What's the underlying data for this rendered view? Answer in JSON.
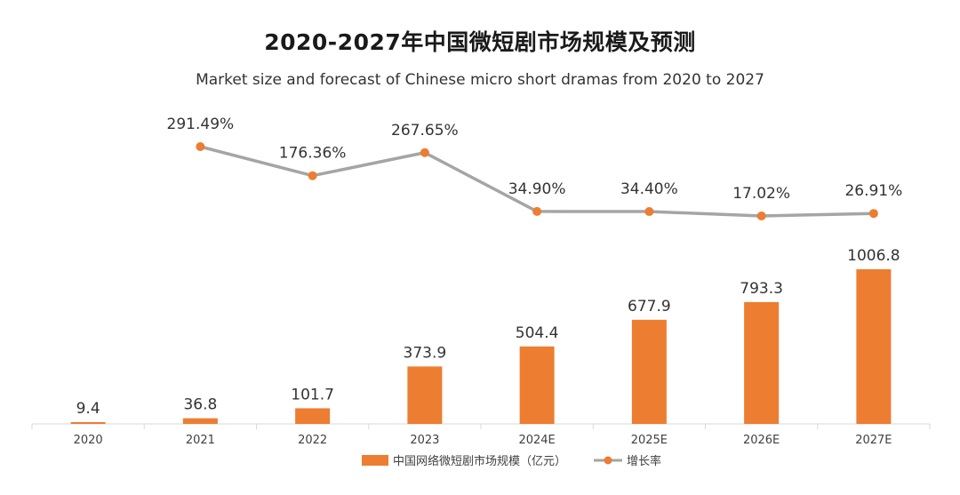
{
  "chart_data": {
    "type": "bar+line",
    "title": "2020-2027年中国微短剧市场规模及预测",
    "subtitle": "Market size and forecast of Chinese micro short dramas from 2020 to 2027",
    "categories": [
      "2020",
      "2021",
      "2022",
      "2023",
      "2024E",
      "2025E",
      "2026E",
      "2027E"
    ],
    "series": [
      {
        "name": "中国网络微短剧市场规模（亿元）",
        "type": "bar",
        "color": "#ED7D31",
        "values": [
          9.4,
          36.8,
          101.7,
          373.9,
          504.4,
          677.9,
          793.3,
          1006.8
        ],
        "labels": [
          "9.4",
          "36.8",
          "101.7",
          "373.9",
          "504.4",
          "677.9",
          "793.3",
          "1006.8"
        ]
      },
      {
        "name": "增长率",
        "type": "line",
        "line_color": "#A5A5A5",
        "marker_color": "#ED7D31",
        "values": [
          null,
          291.49,
          176.36,
          267.65,
          34.9,
          34.4,
          17.02,
          26.91
        ],
        "labels": [
          "",
          "291.49%",
          "176.36%",
          "267.65%",
          "34.90%",
          "34.40%",
          "17.02%",
          "26.91%"
        ]
      }
    ],
    "legend_position": "bottom-center",
    "grid": false
  }
}
